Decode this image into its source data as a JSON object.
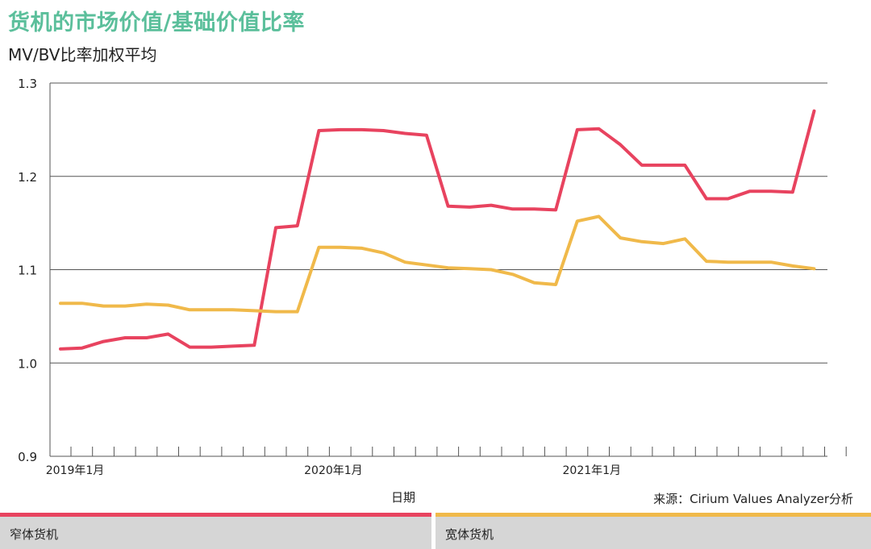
{
  "title": "货机的市场价值/基础价值比率",
  "subtitle": "MV/BV比率加权平均",
  "source": "来源：Cirium Values Analyzer分析",
  "chart_data": {
    "type": "line",
    "title": "货机的市场价值/基础价值比率",
    "subtitle": "MV/BV比率加权平均",
    "xlabel": "日期",
    "ylabel": "",
    "ylim": [
      0.9,
      1.3
    ],
    "yticks": [
      "0.9",
      "1.0",
      "1.1",
      "1.2",
      "1.3"
    ],
    "ytick_values": [
      0.9,
      1.0,
      1.1,
      1.2,
      1.3
    ],
    "xtick_labels": [
      {
        "label": "2019年1月",
        "month_index": 0
      },
      {
        "label": "2020年1月",
        "month_index": 12
      },
      {
        "label": "2021年1月",
        "month_index": 24
      }
    ],
    "x_start": "2019年1月",
    "month_count": 37,
    "grid": true,
    "legend_position": "bottom",
    "series": [
      {
        "name": "窄体货机",
        "color": "#e8435f",
        "values": [
          1.015,
          1.016,
          1.023,
          1.027,
          1.027,
          1.031,
          1.017,
          1.017,
          1.018,
          1.019,
          1.145,
          1.147,
          1.249,
          1.25,
          1.25,
          1.249,
          1.246,
          1.244,
          1.168,
          1.167,
          1.169,
          1.165,
          1.165,
          1.164,
          1.25,
          1.251,
          1.234,
          1.212,
          1.212,
          1.212,
          1.176,
          1.176,
          1.184,
          1.184,
          1.183,
          1.27
        ]
      },
      {
        "name": "宽体货机",
        "color": "#f0b94a",
        "values": [
          1.064,
          1.064,
          1.061,
          1.061,
          1.063,
          1.062,
          1.057,
          1.057,
          1.057,
          1.056,
          1.055,
          1.055,
          1.124,
          1.124,
          1.123,
          1.118,
          1.108,
          1.105,
          1.102,
          1.101,
          1.1,
          1.095,
          1.086,
          1.084,
          1.152,
          1.157,
          1.134,
          1.13,
          1.128,
          1.133,
          1.109,
          1.108,
          1.108,
          1.108,
          1.104,
          1.101
        ]
      }
    ]
  },
  "legend": {
    "left": {
      "label": "窄体货机",
      "color": "#e8435f"
    },
    "right": {
      "label": "宽体货机",
      "color": "#f0b94a"
    }
  }
}
